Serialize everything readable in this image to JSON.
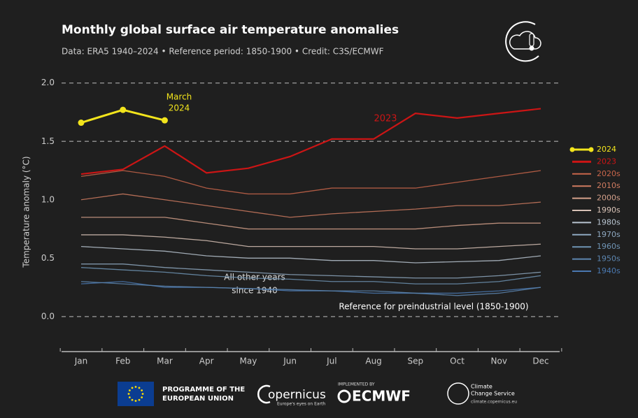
{
  "chart_data": {
    "type": "line",
    "title": "Monthly global surface air temperature anomalies",
    "subtitle": "Data: ERA5 1940–2024 • Reference period: 1850-1900 • Credit: C3S/ECMWF",
    "y_label": "Temperature anomaly (°C)",
    "categories": [
      "Jan",
      "Feb",
      "Mar",
      "Apr",
      "May",
      "Jun",
      "Jul",
      "Aug",
      "Sep",
      "Oct",
      "Nov",
      "Dec"
    ],
    "ylim": [
      -0.3,
      2.1
    ],
    "yticks": [
      {
        "value": 0,
        "label": "0.0"
      },
      0.5,
      {
        "value": 1,
        "label": "1.0"
      },
      1.5,
      {
        "value": 2,
        "label": "2.0"
      }
    ],
    "reference_lines": [
      0,
      1.5,
      2
    ],
    "annotations": [
      "March",
      "2024",
      "2023",
      "All other years",
      "since 1940",
      "Reference for preindustrial level (1850-1900)"
    ],
    "series": [
      {
        "name": "2024",
        "color": "#f2e41c",
        "values": [
          1.66,
          1.77,
          1.68,
          null,
          null,
          null,
          null,
          null,
          null,
          null,
          null,
          null
        ]
      },
      {
        "name": "2023",
        "color": "#cc1515",
        "values": [
          1.22,
          1.26,
          1.46,
          1.23,
          1.27,
          1.37,
          1.52,
          1.52,
          1.74,
          1.7,
          1.74,
          1.78
        ]
      },
      {
        "name": "2020s",
        "color": "#c8654a",
        "values": [
          1.2,
          1.25,
          1.2,
          1.1,
          1.05,
          1.05,
          1.1,
          1.1,
          1.1,
          1.15,
          1.2,
          1.25
        ]
      },
      {
        "name": "2010s",
        "color": "#cf7b60",
        "values": [
          1.0,
          1.05,
          1.0,
          0.95,
          0.9,
          0.85,
          0.88,
          0.9,
          0.92,
          0.95,
          0.95,
          0.98
        ]
      },
      {
        "name": "2000s",
        "color": "#d4a08a",
        "values": [
          0.85,
          0.85,
          0.85,
          0.8,
          0.75,
          0.75,
          0.75,
          0.75,
          0.75,
          0.78,
          0.8,
          0.8
        ]
      },
      {
        "name": "1990s",
        "color": "#d8c2b6",
        "values": [
          0.7,
          0.7,
          0.68,
          0.65,
          0.6,
          0.6,
          0.6,
          0.6,
          0.58,
          0.58,
          0.6,
          0.62
        ]
      },
      {
        "name": "1980s",
        "color": "#b8c4d0",
        "values": [
          0.6,
          0.58,
          0.56,
          0.52,
          0.5,
          0.5,
          0.48,
          0.48,
          0.46,
          0.47,
          0.48,
          0.52
        ]
      },
      {
        "name": "1970s",
        "color": "#8ea8c0",
        "values": [
          0.45,
          0.45,
          0.42,
          0.4,
          0.38,
          0.36,
          0.35,
          0.34,
          0.33,
          0.33,
          0.35,
          0.38
        ]
      },
      {
        "name": "1960s",
        "color": "#6f94b4",
        "values": [
          0.42,
          0.4,
          0.38,
          0.35,
          0.33,
          0.32,
          0.3,
          0.3,
          0.28,
          0.28,
          0.3,
          0.35
        ]
      },
      {
        "name": "1950s",
        "color": "#5d86b0",
        "values": [
          0.3,
          0.28,
          0.26,
          0.25,
          0.24,
          0.23,
          0.22,
          0.22,
          0.2,
          0.18,
          0.2,
          0.25
        ]
      },
      {
        "name": "1940s",
        "color": "#4a78b0",
        "values": [
          0.28,
          0.3,
          0.25,
          0.25,
          0.24,
          0.22,
          0.22,
          0.2,
          0.2,
          0.2,
          0.22,
          0.25
        ]
      }
    ]
  },
  "footer": {
    "eu": [
      "PROGRAMME OF THE",
      "EUROPEAN UNION"
    ],
    "copernicus": "opernicus",
    "copernicus_tag": "Europe's eyes on Earth",
    "implemented": "IMPLEMENTED BY",
    "ecmwf": "ECMWF",
    "c3s": [
      "Climate",
      "Change Service"
    ],
    "url": "climate.copernicus.eu"
  }
}
